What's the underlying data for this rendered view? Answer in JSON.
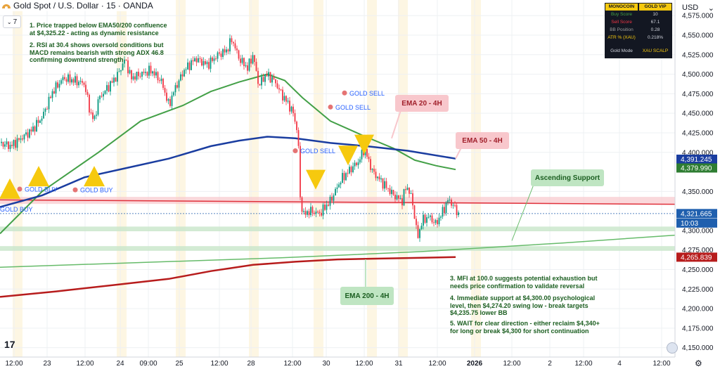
{
  "header": {
    "symbol": "Gold Spot / U.S. Dollar",
    "sep1": "·",
    "interval": "15",
    "sep2": "·",
    "broker": "OANDA"
  },
  "interval_button": "7",
  "currency_selector": "USD",
  "currency_caret": "⌄",
  "panel": {
    "header": [
      "MONOCOIN",
      "GOLD VIP"
    ],
    "rows": [
      {
        "label": "Buy Score",
        "value": "10"
      },
      {
        "label": "Sell Score",
        "value": "67.1"
      },
      {
        "label": "BB Position",
        "value": "0.28"
      },
      {
        "label": "ATR % (XAU)",
        "value": "0.218%"
      }
    ],
    "footer": [
      "Gold Mode",
      "XAU SCALP"
    ]
  },
  "notes": {
    "n1": "1. Price trapped below EMA50/200 confluence\nat $4,325.22 - acting as dynamic resistance",
    "n2": "2. RSI at 30.4 shows oversold conditions but\nMACD remains bearish with strong ADX 46.8\nconfirming downtrend strength",
    "n3": "3. MFI at 100.0 suggests potential exhaustion but\nneeds price confirmation to validate reversal",
    "n4": "4. Immediate support at $4,300.00 psychological\nlevel, then $4,274.20 swing low - break targets\n$4,235.75 lower BB",
    "n5": "5. WAIT for clear direction - either reclaim $4,340+\nfor long or break $4,300 for short continuation"
  },
  "callouts": {
    "ema20": "EMA 20 - 4H",
    "ema50": "EMA 50 - 4H",
    "ema200": "EMA 200 - 4H",
    "support": "Ascending Support"
  },
  "tv_logo": "17",
  "settings_icon": "⚙",
  "colors": {
    "up": "#089981",
    "down": "#f23645",
    "ema20": "#43a047",
    "ema50": "#1a3da0",
    "ema200": "#b71c1c",
    "support": "#66bb6a",
    "triangle": "#f6c90e"
  },
  "chart_data": {
    "type": "candlestick",
    "y_axis": {
      "ticks": [
        "4,575.000",
        "4,550.000",
        "4,525.000",
        "4,500.000",
        "4,475.000",
        "4,450.000",
        "4,425.000",
        "4,400.000",
        "4,350.000",
        "4,300.000",
        "4,275.000",
        "4,250.000",
        "4,225.000",
        "4,200.000",
        "4,175.000",
        "4,150.000"
      ],
      "ylim": [
        4138,
        4595
      ]
    },
    "x_axis": {
      "ticks": [
        "12:00",
        "23",
        "12:00",
        "24",
        "09:00",
        "25",
        "12:00",
        "28",
        "12:00",
        "30",
        "12:00",
        "31",
        "12:00",
        "2026",
        "12:00",
        "2",
        "12:00",
        "4",
        "12:00"
      ]
    },
    "price_labels": [
      {
        "text": "4,391.245",
        "value": 4391.245,
        "color": "#1a3da0"
      },
      {
        "text": "4,379.990",
        "value": 4379.99,
        "color": "#2e7d32"
      },
      {
        "text": "4,321.665",
        "value": 4321.665,
        "color": "#1f5fae"
      },
      {
        "text": "10:03",
        "value": 4309.5,
        "color": "#1f5fae"
      },
      {
        "text": "4,265.839",
        "value": 4265.839,
        "color": "#b71c1c"
      }
    ],
    "price_path": [
      [
        0,
        4412
      ],
      [
        15,
        4408
      ],
      [
        30,
        4418
      ],
      [
        45,
        4428
      ],
      [
        60,
        4445
      ],
      [
        75,
        4478
      ],
      [
        90,
        4495
      ],
      [
        105,
        4492
      ],
      [
        120,
        4488
      ],
      [
        128,
        4452
      ],
      [
        134,
        4440
      ],
      [
        140,
        4468
      ],
      [
        155,
        4485
      ],
      [
        168,
        4500
      ],
      [
        178,
        4520
      ],
      [
        186,
        4495
      ],
      [
        200,
        4500
      ],
      [
        215,
        4505
      ],
      [
        230,
        4490
      ],
      [
        240,
        4460
      ],
      [
        248,
        4480
      ],
      [
        262,
        4505
      ],
      [
        278,
        4520
      ],
      [
        295,
        4512
      ],
      [
        310,
        4525
      ],
      [
        322,
        4530
      ],
      [
        330,
        4545
      ],
      [
        340,
        4520
      ],
      [
        352,
        4508
      ],
      [
        360,
        4525
      ],
      [
        368,
        4485
      ],
      [
        378,
        4500
      ],
      [
        390,
        4492
      ],
      [
        400,
        4475
      ],
      [
        410,
        4462
      ],
      [
        418,
        4448
      ],
      [
        424,
        4420
      ],
      [
        427,
        4340
      ],
      [
        432,
        4320
      ],
      [
        440,
        4325
      ],
      [
        455,
        4322
      ],
      [
        470,
        4338
      ],
      [
        485,
        4365
      ],
      [
        500,
        4380
      ],
      [
        510,
        4388
      ],
      [
        518,
        4405
      ],
      [
        530,
        4375
      ],
      [
        545,
        4360
      ],
      [
        560,
        4345
      ],
      [
        572,
        4338
      ],
      [
        578,
        4358
      ],
      [
        586,
        4340
      ],
      [
        594,
        4290
      ],
      [
        600,
        4312
      ],
      [
        610,
        4318
      ],
      [
        620,
        4308
      ],
      [
        630,
        4325
      ],
      [
        638,
        4340
      ],
      [
        646,
        4330
      ],
      [
        652,
        4321
      ]
    ],
    "series": [
      {
        "name": "EMA 20 - 4H",
        "points": [
          [
            0,
            4296
          ],
          [
            60,
            4350
          ],
          [
            140,
            4400
          ],
          [
            200,
            4440
          ],
          [
            260,
            4460
          ],
          [
            300,
            4478
          ],
          [
            340,
            4490
          ],
          [
            380,
            4500
          ],
          [
            405,
            4492
          ],
          [
            430,
            4470
          ],
          [
            470,
            4440
          ],
          [
            520,
            4420
          ],
          [
            560,
            4405
          ],
          [
            590,
            4390
          ],
          [
            620,
            4383
          ],
          [
            648,
            4378
          ]
        ]
      },
      {
        "name": "EMA 50 - 4H",
        "points": [
          [
            0,
            4330
          ],
          [
            60,
            4345
          ],
          [
            120,
            4368
          ],
          [
            180,
            4380
          ],
          [
            240,
            4392
          ],
          [
            300,
            4408
          ],
          [
            340,
            4415
          ],
          [
            380,
            4420
          ],
          [
            420,
            4418
          ],
          [
            470,
            4412
          ],
          [
            520,
            4408
          ],
          [
            580,
            4402
          ],
          [
            648,
            4392
          ]
        ]
      },
      {
        "name": "EMA 200 - 4H",
        "points": [
          [
            0,
            4215
          ],
          [
            80,
            4222
          ],
          [
            160,
            4230
          ],
          [
            240,
            4238
          ],
          [
            300,
            4248
          ],
          [
            360,
            4256
          ],
          [
            420,
            4260
          ],
          [
            480,
            4263
          ],
          [
            540,
            4264
          ],
          [
            600,
            4265
          ],
          [
            648,
            4266
          ]
        ]
      },
      {
        "name": "Ascending Support",
        "points": [
          [
            0,
            4253
          ],
          [
            200,
            4259
          ],
          [
            400,
            4265
          ],
          [
            600,
            4273
          ],
          [
            800,
            4284
          ],
          [
            960,
            4294
          ]
        ]
      }
    ],
    "levels": [
      4339.2,
      4336.0,
      4302.0,
      4277.5
    ],
    "signals": [
      {
        "label": "GOLD BUY",
        "x": 28,
        "value": 4353
      },
      {
        "label": "GOLD BUY",
        "x": 107,
        "value": 4352
      },
      {
        "label": "GOLD SELL",
        "x": 420,
        "value": 4402
      },
      {
        "label": "GOLD SELL",
        "x": 470,
        "value": 4458
      },
      {
        "label": "GOLD SELL",
        "x": 490,
        "value": 4476
      }
    ],
    "extra_label": "GOLD BUY",
    "triangles_up": [
      [
        14,
        4354
      ],
      [
        55,
        4370
      ],
      [
        134,
        4370
      ]
    ],
    "triangles_down": [
      [
        449,
        4365
      ],
      [
        495,
        4396
      ],
      [
        518,
        4410
      ]
    ]
  }
}
